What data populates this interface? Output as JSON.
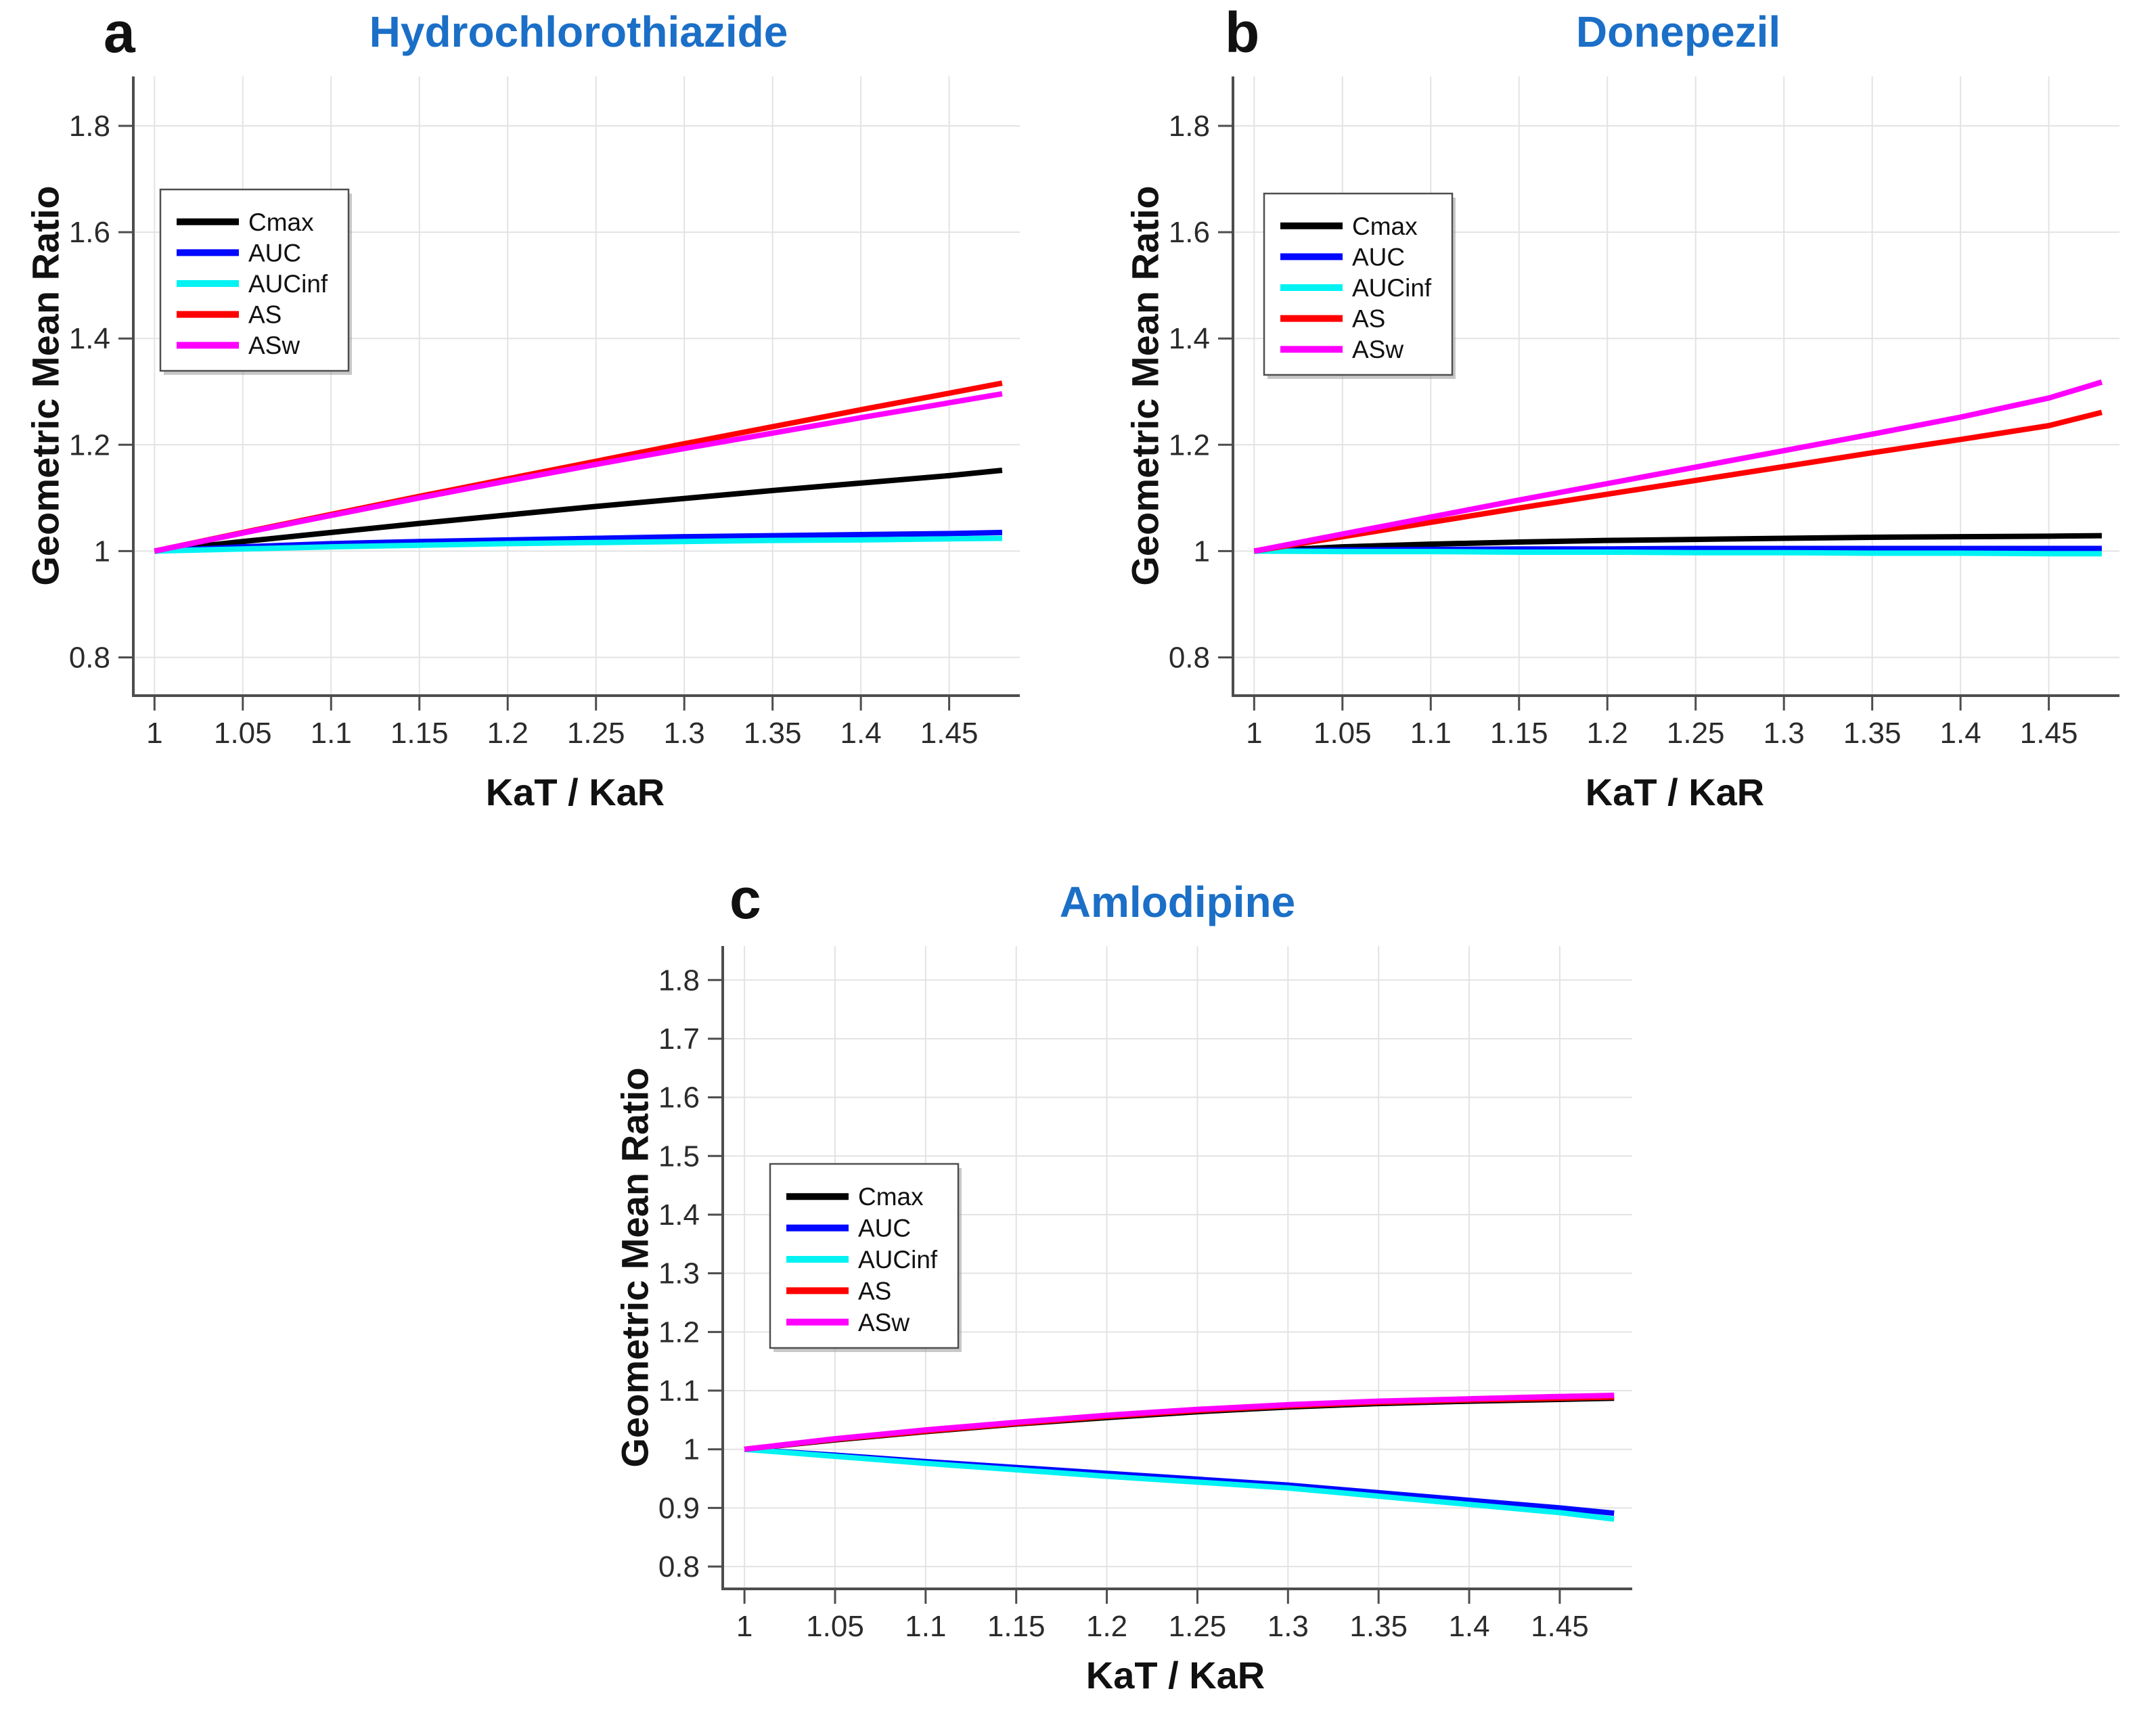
{
  "figure": {
    "description_series_names": [
      "Cmax",
      "AUC",
      "AUCinf",
      "AS",
      "ASw"
    ],
    "accent_title_color": "#1b6fc7"
  },
  "chart_data": [
    {
      "type": "line",
      "panel_letter": "a",
      "title": "Hydrochlorothiazide",
      "title_color": "#1b6fc7",
      "xlabel": "KaT / KaR",
      "ylabel": "Geometric Mean Ratio",
      "xlim": [
        0.988,
        1.49
      ],
      "ylim": [
        0.728,
        1.893
      ],
      "xticks": [
        1,
        1.05,
        1.1,
        1.15,
        1.2,
        1.25,
        1.3,
        1.35,
        1.4,
        1.45
      ],
      "xtick_labels": [
        "1",
        "1.05",
        "1.1",
        "1.15",
        "1.2",
        "1.25",
        "1.3",
        "1.35",
        "1.4",
        "1.45"
      ],
      "yticks": [
        0.8,
        1,
        1.2,
        1.4,
        1.6,
        1.8
      ],
      "ytick_labels": [
        "0.8",
        "1",
        "1.2",
        "1.4",
        "1.6",
        "1.8"
      ],
      "grid": true,
      "legend_position": "inside-upper-left",
      "x": [
        1,
        1.05,
        1.1,
        1.15,
        1.2,
        1.25,
        1.3,
        1.35,
        1.4,
        1.45,
        1.48
      ],
      "series": [
        {
          "name": "Cmax",
          "color": "#000000",
          "values": [
            1.0,
            1.018,
            1.035,
            1.052,
            1.068,
            1.084,
            1.099,
            1.114,
            1.128,
            1.142,
            1.152
          ]
        },
        {
          "name": "AUC",
          "color": "#0008ff",
          "values": [
            1.0,
            1.008,
            1.014,
            1.018,
            1.021,
            1.024,
            1.027,
            1.029,
            1.031,
            1.033,
            1.035
          ]
        },
        {
          "name": "AUCinf",
          "color": "#00f2f2",
          "values": [
            1.0,
            1.004,
            1.008,
            1.011,
            1.014,
            1.016,
            1.018,
            1.02,
            1.021,
            1.023,
            1.024
          ]
        },
        {
          "name": "AS",
          "color": "#ff0000",
          "values": [
            1.0,
            1.035,
            1.069,
            1.103,
            1.136,
            1.169,
            1.202,
            1.234,
            1.266,
            1.297,
            1.316
          ]
        },
        {
          "name": "ASw",
          "color": "#ff00ff",
          "values": [
            1.0,
            1.034,
            1.067,
            1.1,
            1.132,
            1.163,
            1.193,
            1.222,
            1.251,
            1.279,
            1.296
          ]
        }
      ]
    },
    {
      "type": "line",
      "panel_letter": "b",
      "title": "Donepezil",
      "title_color": "#1b6fc7",
      "xlabel": "KaT / KaR",
      "ylabel": "Geometric Mean Ratio",
      "xlim": [
        0.988,
        1.49
      ],
      "ylim": [
        0.728,
        1.893
      ],
      "xticks": [
        1,
        1.05,
        1.1,
        1.15,
        1.2,
        1.25,
        1.3,
        1.35,
        1.4,
        1.45
      ],
      "xtick_labels": [
        "1",
        "1.05",
        "1.1",
        "1.15",
        "1.2",
        "1.25",
        "1.3",
        "1.35",
        "1.4",
        "1.45"
      ],
      "yticks": [
        0.8,
        1,
        1.2,
        1.4,
        1.6,
        1.8
      ],
      "ytick_labels": [
        "0.8",
        "1",
        "1.2",
        "1.4",
        "1.6",
        "1.8"
      ],
      "grid": true,
      "legend_position": "inside-upper-left",
      "x": [
        1,
        1.05,
        1.1,
        1.15,
        1.2,
        1.25,
        1.3,
        1.35,
        1.4,
        1.45,
        1.48
      ],
      "series": [
        {
          "name": "Cmax",
          "color": "#000000",
          "values": [
            1.0,
            1.008,
            1.013,
            1.017,
            1.02,
            1.022,
            1.024,
            1.026,
            1.027,
            1.028,
            1.029
          ]
        },
        {
          "name": "AUC",
          "color": "#0008ff",
          "values": [
            1.0,
            1.002,
            1.003,
            1.004,
            1.004,
            1.005,
            1.005,
            1.005,
            1.005,
            1.005,
            1.005
          ]
        },
        {
          "name": "AUCinf",
          "color": "#00f2f2",
          "values": [
            1.0,
            0.999,
            0.999,
            0.998,
            0.998,
            0.997,
            0.997,
            0.996,
            0.996,
            0.995,
            0.995
          ]
        },
        {
          "name": "AS",
          "color": "#ff0000",
          "values": [
            1.0,
            1.027,
            1.054,
            1.081,
            1.107,
            1.133,
            1.159,
            1.185,
            1.21,
            1.236,
            1.261
          ]
        },
        {
          "name": "ASw",
          "color": "#ff00ff",
          "values": [
            1.0,
            1.032,
            1.064,
            1.096,
            1.127,
            1.158,
            1.189,
            1.22,
            1.252,
            1.288,
            1.318
          ]
        }
      ]
    },
    {
      "type": "line",
      "panel_letter": "c",
      "title": "Amlodipine",
      "title_color": "#1b6fc7",
      "xlabel": "KaT / KaR",
      "ylabel": "Geometric Mean Ratio",
      "xlim": [
        0.988,
        1.49
      ],
      "ylim": [
        0.762,
        1.858
      ],
      "xticks": [
        1,
        1.05,
        1.1,
        1.15,
        1.2,
        1.25,
        1.3,
        1.35,
        1.4,
        1.45
      ],
      "xtick_labels": [
        "1",
        "1.05",
        "1.1",
        "1.15",
        "1.2",
        "1.25",
        "1.3",
        "1.35",
        "1.4",
        "1.45"
      ],
      "yticks": [
        0.8,
        0.9,
        1,
        1.1,
        1.2,
        1.3,
        1.4,
        1.5,
        1.6,
        1.7,
        1.8
      ],
      "ytick_labels": [
        "0.8",
        "0.9",
        "1",
        "1.1",
        "1.2",
        "1.3",
        "1.4",
        "1.5",
        "1.6",
        "1.7",
        "1.8"
      ],
      "grid": true,
      "legend_position": "inside-middle-left",
      "x": [
        1,
        1.05,
        1.1,
        1.15,
        1.2,
        1.25,
        1.3,
        1.35,
        1.4,
        1.45,
        1.48
      ],
      "series": [
        {
          "name": "Cmax",
          "color": "#000000",
          "values": [
            1.0,
            1.016,
            1.03,
            1.043,
            1.054,
            1.064,
            1.072,
            1.078,
            1.082,
            1.085,
            1.087
          ]
        },
        {
          "name": "AUC",
          "color": "#0008ff",
          "values": [
            1.0,
            0.99,
            0.979,
            0.969,
            0.959,
            0.949,
            0.939,
            0.926,
            0.913,
            0.9,
            0.891
          ]
        },
        {
          "name": "AUCinf",
          "color": "#00f2f2",
          "values": [
            1.0,
            0.988,
            0.976,
            0.965,
            0.954,
            0.944,
            0.934,
            0.92,
            0.906,
            0.892,
            0.881
          ]
        },
        {
          "name": "AS",
          "color": "#ff0000",
          "values": [
            1.0,
            1.017,
            1.031,
            1.044,
            1.056,
            1.066,
            1.074,
            1.08,
            1.084,
            1.087,
            1.089
          ]
        },
        {
          "name": "ASw",
          "color": "#ff00ff",
          "values": [
            1.0,
            1.018,
            1.033,
            1.046,
            1.058,
            1.068,
            1.076,
            1.082,
            1.086,
            1.09,
            1.092
          ]
        }
      ]
    }
  ]
}
